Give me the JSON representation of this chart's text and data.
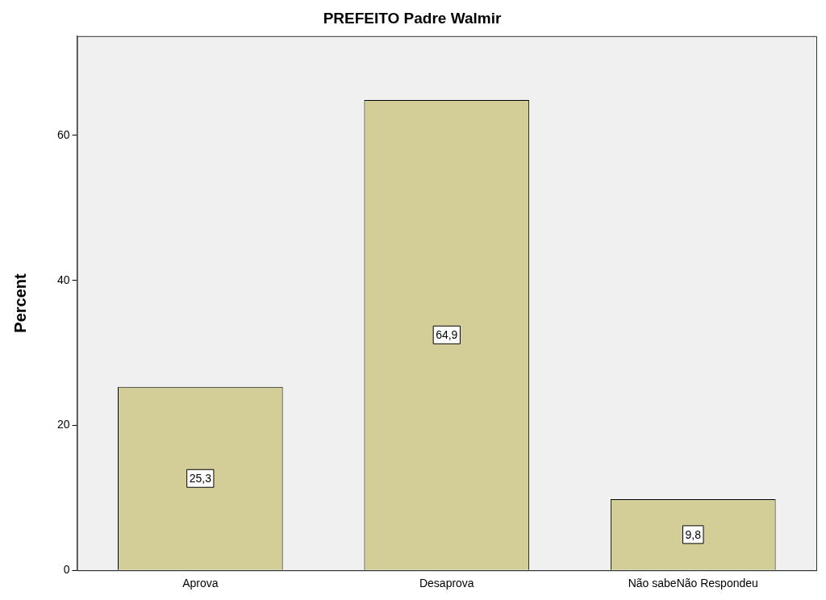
{
  "chart_data": {
    "type": "bar",
    "title": "PREFEITO Padre Walmir",
    "ylabel": "Percent",
    "categories": [
      "Aprova",
      "Desaprova",
      "Não sabeNão Respondeu"
    ],
    "values": [
      25.3,
      64.9,
      9.8
    ],
    "value_labels": [
      "25,3",
      "64,9",
      "9,8"
    ],
    "color": "#d3ce98",
    "ylim": [
      0,
      73.7
    ],
    "yticks": [
      0,
      20,
      40,
      60
    ],
    "grid": false,
    "legend": false
  }
}
